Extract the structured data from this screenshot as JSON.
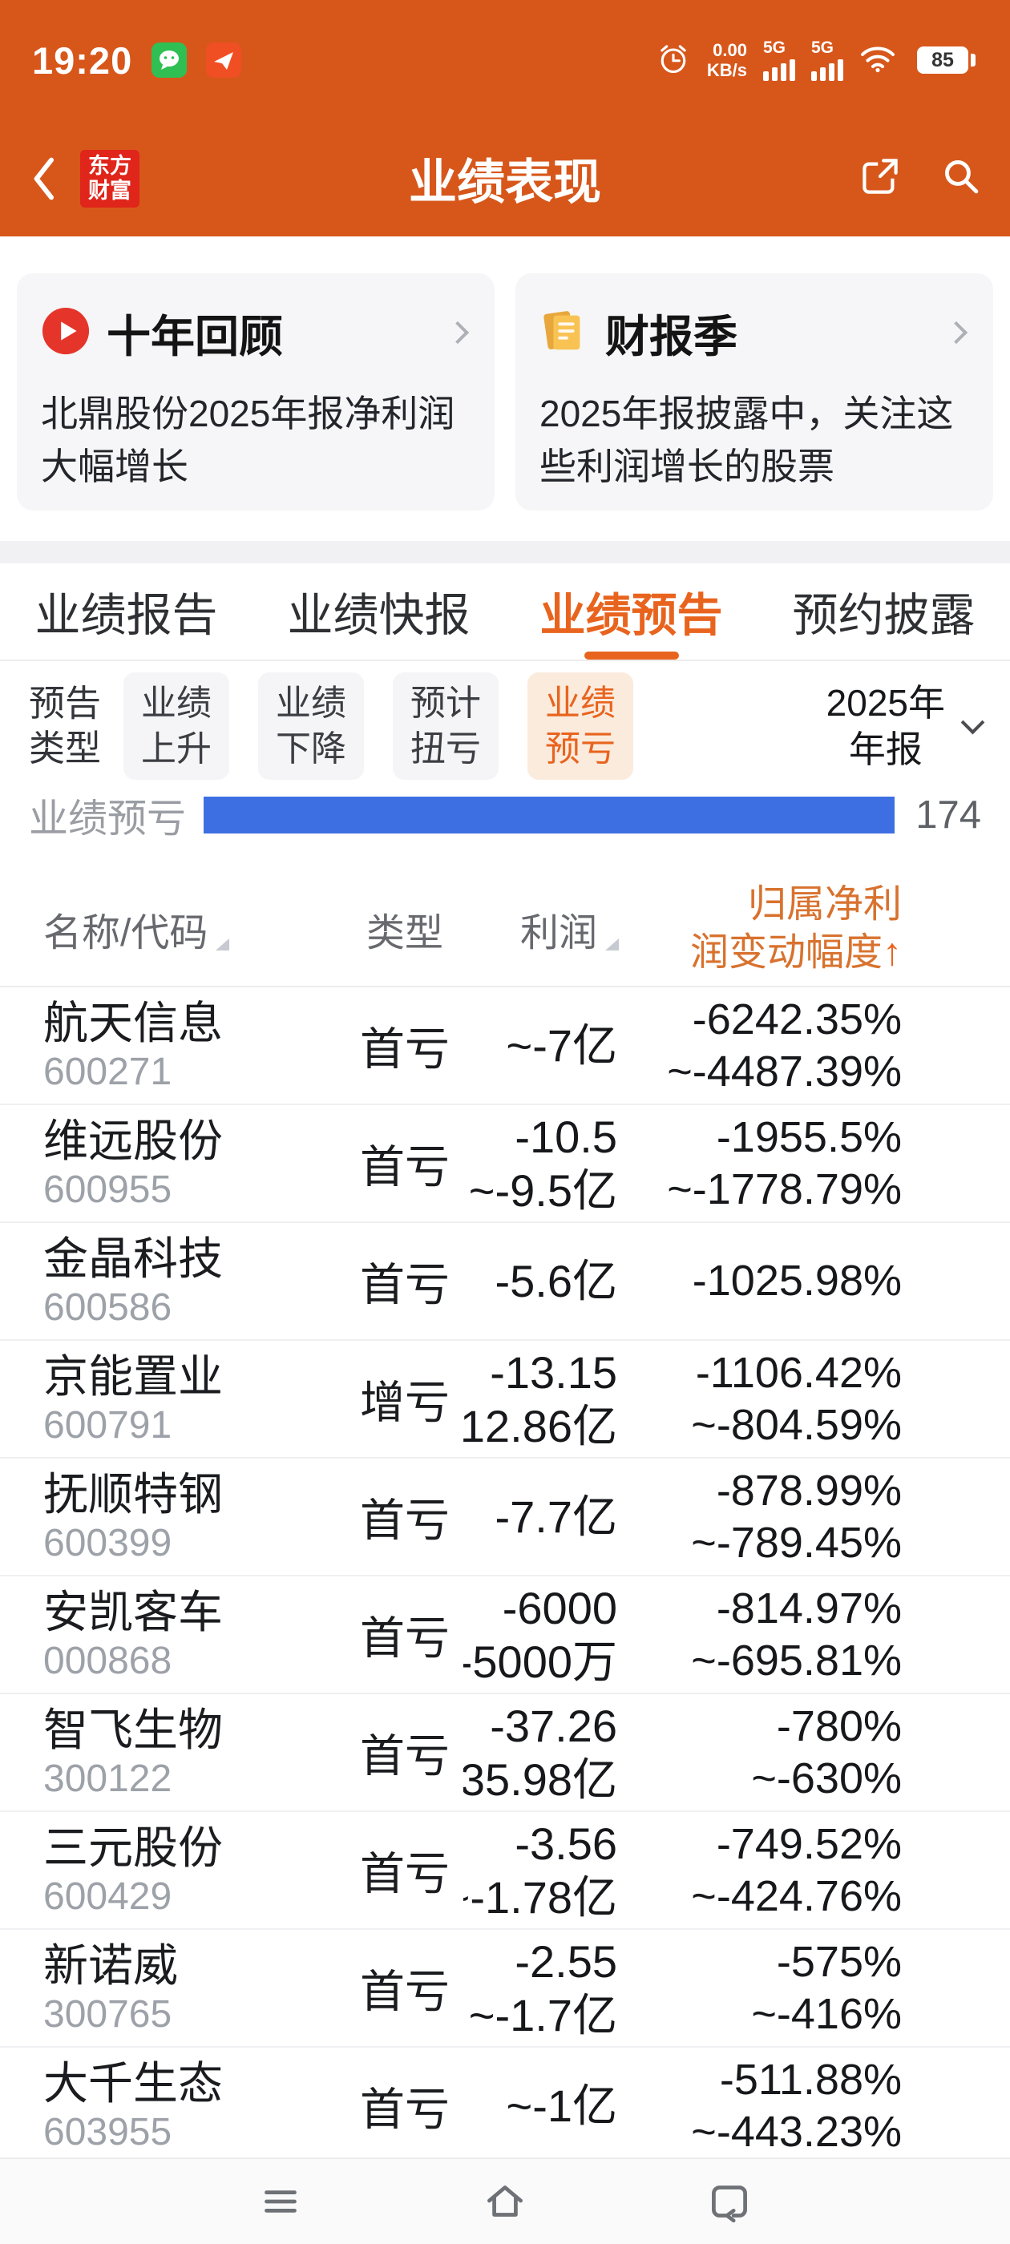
{
  "status_bar": {
    "time": "19:20",
    "speed_value": "0.00",
    "speed_unit": "KB/s",
    "net1": "5G",
    "net2": "5G",
    "battery": "85"
  },
  "app_bar": {
    "title": "业绩表现",
    "logo_l1": "东方",
    "logo_l2": "财富"
  },
  "promo_cards": [
    {
      "title": "十年回顾",
      "desc": "北鼎股份2025年报净利润大幅增长"
    },
    {
      "title": "财报季",
      "desc": "2025年报披露中，关注这些利润增长的股票"
    }
  ],
  "tabs": [
    {
      "label": "业绩报告",
      "active": false
    },
    {
      "label": "业绩快报",
      "active": false
    },
    {
      "label": "业绩预告",
      "active": true
    },
    {
      "label": "预约披露",
      "active": false
    }
  ],
  "filter": {
    "label_l1": "预告",
    "label_l2": "类型",
    "chips": [
      {
        "l1": "业绩",
        "l2": "上升",
        "active": false
      },
      {
        "l1": "业绩",
        "l2": "下降",
        "active": false
      },
      {
        "l1": "预计",
        "l2": "扭亏",
        "active": false
      },
      {
        "l1": "业绩",
        "l2": "预亏",
        "active": true
      }
    ],
    "period_l1": "2025年",
    "period_l2": "年报"
  },
  "chart_row": {
    "label": "业绩预亏",
    "count": "174"
  },
  "table": {
    "header": {
      "col1": "名称/代码",
      "col2": "类型",
      "col3": "利润",
      "col4_l1": "归属净利",
      "col4_l2": "润变动幅度",
      "sort_arrow": "↑"
    },
    "rows": [
      {
        "name": "航天信息",
        "code": "600271",
        "type": "首亏",
        "profit": [
          "~-7亿",
          ""
        ],
        "change": [
          "-6242.35%",
          "~-4487.39%"
        ]
      },
      {
        "name": "维远股份",
        "code": "600955",
        "type": "首亏",
        "profit": [
          "-10.5",
          "~-9.5亿"
        ],
        "change": [
          "-1955.5%",
          "~-1778.79%"
        ]
      },
      {
        "name": "金晶科技",
        "code": "600586",
        "type": "首亏",
        "profit": [
          "-5.6亿",
          ""
        ],
        "change": [
          "-1025.98%",
          ""
        ]
      },
      {
        "name": "京能置业",
        "code": "600791",
        "type": "增亏",
        "profit": [
          "-13.15",
          "~-12.86亿"
        ],
        "change": [
          "-1106.42%",
          "~-804.59%"
        ]
      },
      {
        "name": "抚顺特钢",
        "code": "600399",
        "type": "首亏",
        "profit": [
          "-7.7亿",
          ""
        ],
        "change": [
          "-878.99%",
          "~-789.45%"
        ]
      },
      {
        "name": "安凯客车",
        "code": "000868",
        "type": "首亏",
        "profit": [
          "-6000",
          "~-5000万"
        ],
        "change": [
          "-814.97%",
          "~-695.81%"
        ]
      },
      {
        "name": "智飞生物",
        "code": "300122",
        "type": "首亏",
        "profit": [
          "-37.26",
          "~-35.98亿"
        ],
        "change": [
          "-780%",
          "~-630%"
        ]
      },
      {
        "name": "三元股份",
        "code": "600429",
        "type": "首亏",
        "profit": [
          "-3.56",
          "~-1.78亿"
        ],
        "change": [
          "-749.52%",
          "~-424.76%"
        ]
      },
      {
        "name": "新诺威",
        "code": "300765",
        "type": "首亏",
        "profit": [
          "-2.55",
          "~-1.7亿"
        ],
        "change": [
          "-575%",
          "~-416%"
        ]
      },
      {
        "name": "大千生态",
        "code": "603955",
        "type": "首亏",
        "profit": [
          "~-1亿",
          ""
        ],
        "change": [
          "-511.88%",
          "~-443.23%"
        ]
      }
    ]
  },
  "colors": {
    "primary": "#D7571B",
    "accent": "#E8641E",
    "bar_blue": "#3D6FE2"
  }
}
